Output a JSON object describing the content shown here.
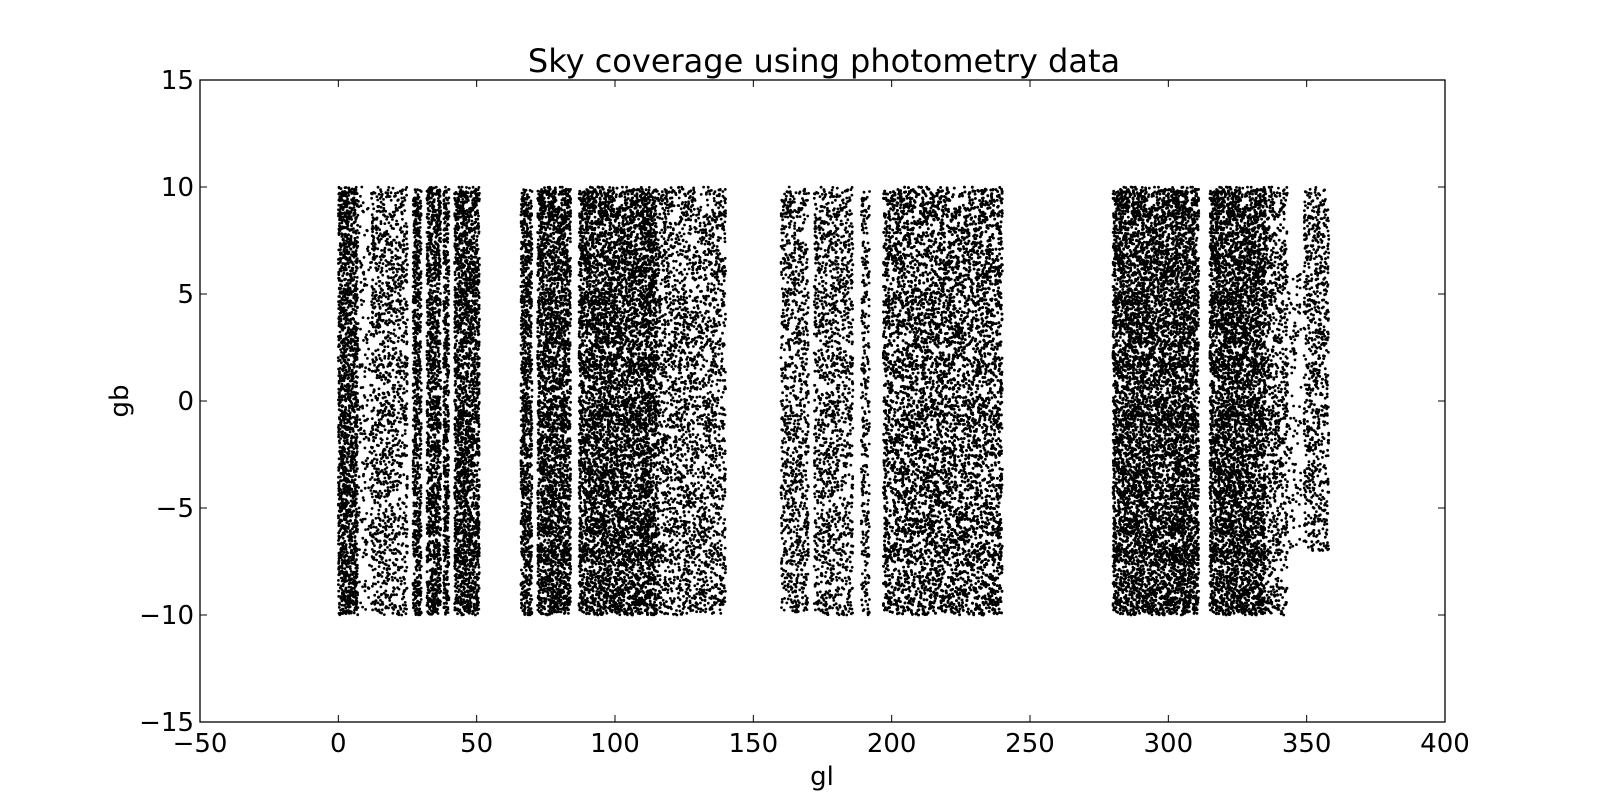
{
  "chart_data": {
    "type": "scatter",
    "title": "Sky coverage using photometry data",
    "xlabel": "gl",
    "ylabel": "gb",
    "xlim": [
      -50,
      400
    ],
    "ylim": [
      -15,
      15
    ],
    "xticks": [
      -50,
      0,
      50,
      100,
      150,
      200,
      250,
      300,
      350,
      400
    ],
    "yticks": [
      -15,
      -10,
      -5,
      0,
      5,
      10,
      15
    ],
    "xtick_labels": [
      "−50",
      "0",
      "50",
      "100",
      "150",
      "200",
      "250",
      "300",
      "350",
      "400"
    ],
    "ytick_labels": [
      "−15",
      "−10",
      "−5",
      "0",
      "5",
      "10",
      "15"
    ],
    "grid": false,
    "legend": "none",
    "marker_color": "#000000",
    "point_count_approx": "tens of thousands",
    "coverage_strips": [
      {
        "gl_min": 0,
        "gl_max": 7,
        "gb_min": -10,
        "gb_max": 10,
        "density": "dense"
      },
      {
        "gl_min": 7,
        "gl_max": 12,
        "gb_min": -10,
        "gb_max": 10,
        "density": "sparse"
      },
      {
        "gl_min": 12,
        "gl_max": 25,
        "gb_min": -10,
        "gb_max": 10,
        "density": "medium"
      },
      {
        "gl_min": 27,
        "gl_max": 30,
        "gb_min": -10,
        "gb_max": 10,
        "density": "dense"
      },
      {
        "gl_min": 32,
        "gl_max": 37,
        "gb_min": -10,
        "gb_max": 10,
        "density": "dense"
      },
      {
        "gl_min": 38,
        "gl_max": 40,
        "gb_min": -10,
        "gb_max": 10,
        "density": "dense"
      },
      {
        "gl_min": 42,
        "gl_max": 51,
        "gb_min": -10,
        "gb_max": 10,
        "density": "dense"
      },
      {
        "gl_min": 66,
        "gl_max": 70,
        "gb_min": -10,
        "gb_max": 10,
        "density": "dense"
      },
      {
        "gl_min": 72,
        "gl_max": 84,
        "gb_min": -10,
        "gb_max": 10,
        "density": "dense"
      },
      {
        "gl_min": 87,
        "gl_max": 110,
        "gb_min": -10,
        "gb_max": 10,
        "density": "dense"
      },
      {
        "gl_min": 110,
        "gl_max": 115,
        "gb_min": -10,
        "gb_max": 10,
        "density": "dense"
      },
      {
        "gl_min": 115,
        "gl_max": 140,
        "gb_min": -10,
        "gb_max": 10,
        "density": "medium"
      },
      {
        "gl_min": 160,
        "gl_max": 170,
        "gb_min": -10,
        "gb_max": 10,
        "density": "medium"
      },
      {
        "gl_min": 172,
        "gl_max": 186,
        "gb_min": -10,
        "gb_max": 10,
        "density": "medium"
      },
      {
        "gl_min": 189,
        "gl_max": 192,
        "gb_min": -10,
        "gb_max": 10,
        "density": "medium"
      },
      {
        "gl_min": 197,
        "gl_max": 240,
        "gb_min": -10,
        "gb_max": 10,
        "density": "dense"
      },
      {
        "gl_min": 280,
        "gl_max": 302,
        "gb_min": -10,
        "gb_max": 10,
        "density": "dense"
      },
      {
        "gl_min": 302,
        "gl_max": 311,
        "gb_min": -10,
        "gb_max": 10,
        "density": "dense"
      },
      {
        "gl_min": 315,
        "gl_max": 335,
        "gb_min": -10,
        "gb_max": 10,
        "density": "dense"
      },
      {
        "gl_min": 335,
        "gl_max": 343,
        "gb_min": -10,
        "gb_max": 10,
        "density": "medium"
      },
      {
        "gl_min": 343,
        "gl_max": 348,
        "gb_min": -7,
        "gb_max": 6,
        "density": "sparse"
      },
      {
        "gl_min": 349,
        "gl_max": 358,
        "gb_min": -7,
        "gb_max": 10,
        "density": "medium"
      }
    ]
  }
}
